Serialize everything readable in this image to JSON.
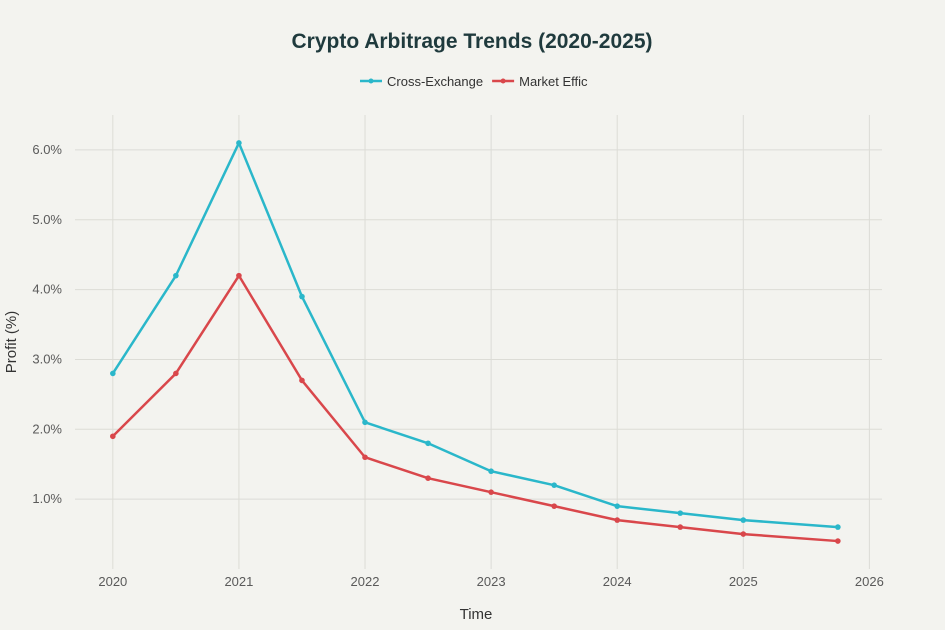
{
  "chart_data": {
    "type": "line",
    "title": "Crypto Arbitrage Trends (2020-2025)",
    "xlabel": "Time",
    "ylabel": "Profit (%)",
    "x": [
      "2020-01-01",
      "2020-07-01",
      "2021-01-01",
      "2021-07-01",
      "2022-01-01",
      "2022-07-01",
      "2023-01-01",
      "2023-07-01",
      "2024-01-01",
      "2024-07-01",
      "2025-01-01",
      "2025-10-01"
    ],
    "xticks": [
      "2020",
      "2021",
      "2022",
      "2023",
      "2024",
      "2025",
      "2026"
    ],
    "yticks": [
      "1.0%",
      "2.0%",
      "3.0%",
      "4.0%",
      "5.0%",
      "6.0%"
    ],
    "ylim": [
      0,
      6.5
    ],
    "grid": true,
    "legend_position": "top-center",
    "series": [
      {
        "name": "Cross-Exchange",
        "color": "#2ab7ca",
        "values": [
          2.8,
          4.2,
          6.1,
          3.9,
          2.1,
          1.8,
          1.4,
          1.2,
          0.9,
          0.8,
          0.7,
          0.6
        ]
      },
      {
        "name": "Market Effic",
        "color": "#d9474b",
        "values": [
          1.9,
          2.8,
          4.2,
          2.7,
          1.6,
          1.3,
          1.1,
          0.9,
          0.7,
          0.6,
          0.5,
          0.4
        ]
      }
    ]
  }
}
